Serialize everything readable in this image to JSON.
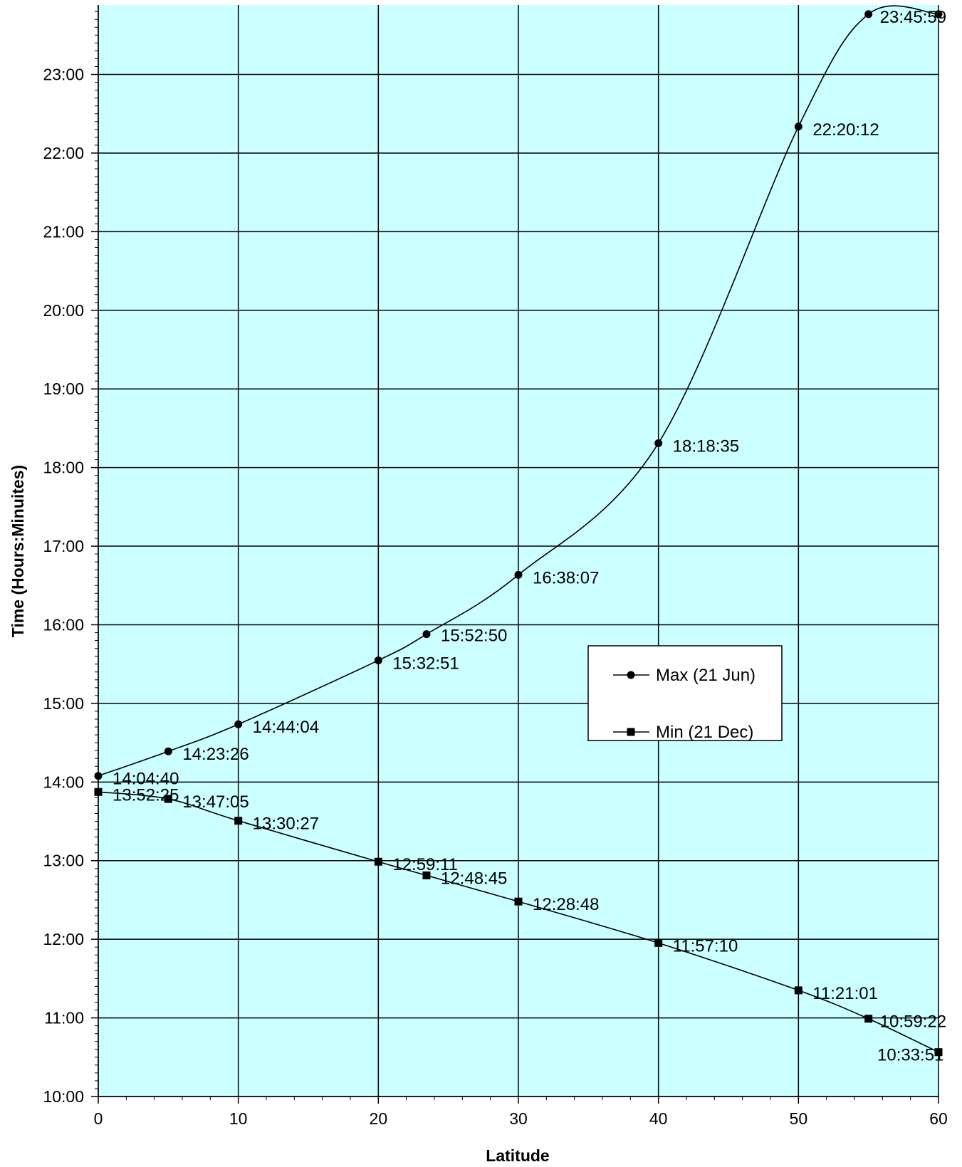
{
  "chart_data": {
    "type": "line",
    "title": "",
    "xlabel": "Latitude",
    "ylabel": "Time (Hours:Minuites)",
    "xlim": [
      0,
      60
    ],
    "ylim": [
      "10:00",
      "23:53"
    ],
    "x_ticks": [
      "0",
      "10",
      "20",
      "30",
      "40",
      "50",
      "60"
    ],
    "y_ticks": [
      "10:00",
      "11:00",
      "12:00",
      "13:00",
      "14:00",
      "15:00",
      "16:00",
      "17:00",
      "18:00",
      "19:00",
      "20:00",
      "21:00",
      "22:00",
      "23:00"
    ],
    "grid": true,
    "background": "#ccffff",
    "legend_position": "right-middle",
    "series": [
      {
        "name": "Max (21 Jun)",
        "marker": "circle",
        "color": "#000000",
        "points": [
          {
            "x": 0,
            "y": "14:04:40"
          },
          {
            "x": 5,
            "y": "14:23:26"
          },
          {
            "x": 10,
            "y": "14:44:04"
          },
          {
            "x": 20,
            "y": "15:32:51"
          },
          {
            "x": 23.44,
            "y": "15:52:50"
          },
          {
            "x": 30,
            "y": "16:38:07"
          },
          {
            "x": 40,
            "y": "18:18:35"
          },
          {
            "x": 50,
            "y": "22:20:12"
          },
          {
            "x": 55,
            "y": "23:45:59"
          },
          {
            "x": 60,
            "y": "23:45:59"
          }
        ]
      },
      {
        "name": "Min (21 Dec)",
        "marker": "square",
        "color": "#000000",
        "points": [
          {
            "x": 0,
            "y": "13:52:25"
          },
          {
            "x": 5,
            "y": "13:47:05"
          },
          {
            "x": 10,
            "y": "13:30:27"
          },
          {
            "x": 20,
            "y": "12:59:11"
          },
          {
            "x": 23.44,
            "y": "12:48:45"
          },
          {
            "x": 30,
            "y": "12:28:48"
          },
          {
            "x": 40,
            "y": "11:57:10"
          },
          {
            "x": 50,
            "y": "11:21:01"
          },
          {
            "x": 55,
            "y": "10:59:22"
          },
          {
            "x": 60,
            "y": "10:33:51"
          }
        ]
      }
    ]
  }
}
